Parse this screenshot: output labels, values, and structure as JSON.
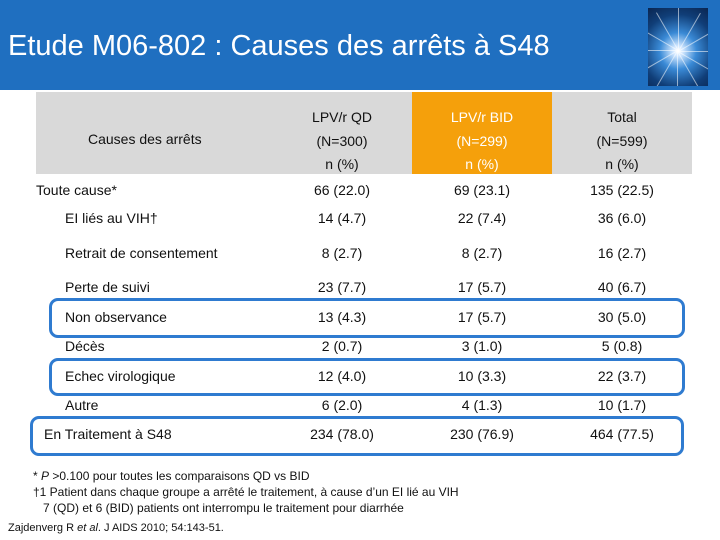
{
  "slide": {
    "title": "Etude M06-802 : Causes des arrêts à S48"
  },
  "table": {
    "header": {
      "causes_label": "Causes des arrêts",
      "columns": [
        {
          "line1": "LPV/r QD",
          "line2": "(N=300)",
          "line3": "n (%)"
        },
        {
          "line1": "LPV/r BID",
          "line2": "(N=299)",
          "line3": "n (%)"
        },
        {
          "line1": "Total",
          "line2": "(N=599)",
          "line3": "n (%)"
        }
      ]
    },
    "rows": [
      {
        "label": "Toute cause*",
        "qd": "66 (22.0)",
        "bid": "69 (23.1)",
        "total": "135 (22.5)"
      },
      {
        "label": "EI liés au VIH†",
        "qd": "14 (4.7)",
        "bid": "22 (7.4)",
        "total": "36 (6.0)"
      },
      {
        "label": "Retrait de consentement",
        "qd": "8 (2.7)",
        "bid": "8 (2.7)",
        "total": "16 (2.7)"
      },
      {
        "label": "Perte de suivi",
        "qd": "23 (7.7)",
        "bid": "17 (5.7)",
        "total": "40 (6.7)"
      },
      {
        "label": "Non observance",
        "qd": "13 (4.3)",
        "bid": "17 (5.7)",
        "total": "30 (5.0)"
      },
      {
        "label": "Décès",
        "qd": "2 (0.7)",
        "bid": "3 (1.0)",
        "total": "5 (0.8)"
      },
      {
        "label": "Echec virologique",
        "qd": "12 (4.0)",
        "bid": "10 (3.3)",
        "total": "22 (3.7)"
      },
      {
        "label": "Autre",
        "qd": "6 (2.0)",
        "bid": "4 (1.3)",
        "total": "10 (1.7)"
      },
      {
        "label": "En Traitement à S48",
        "qd": "234 (78.0)",
        "bid": "230 (76.9)",
        "total": "464 (77.5)"
      }
    ]
  },
  "footnotes": {
    "line1_prefix": "* ",
    "line1_p": "P",
    "line1_rest": " >0.100 pour toutes les comparaisons QD vs BID",
    "line2": "†1 Patient dans chaque groupe a arrêté le traitement, à cause d’un EI lié au VIH",
    "line3": "7 (QD) et 6 (BID) patients ont interrompu le traitement pour diarrhée"
  },
  "reference": {
    "authors": "Zajdenverg R ",
    "etal": "et al",
    "rest": ". J AIDS 2010; 54:143-51."
  },
  "colors": {
    "title_bar": "#1f6fc0",
    "bid_header": "#f5a00b",
    "header_gray": "#d9d9d9",
    "outline": "#2f7bd0"
  }
}
